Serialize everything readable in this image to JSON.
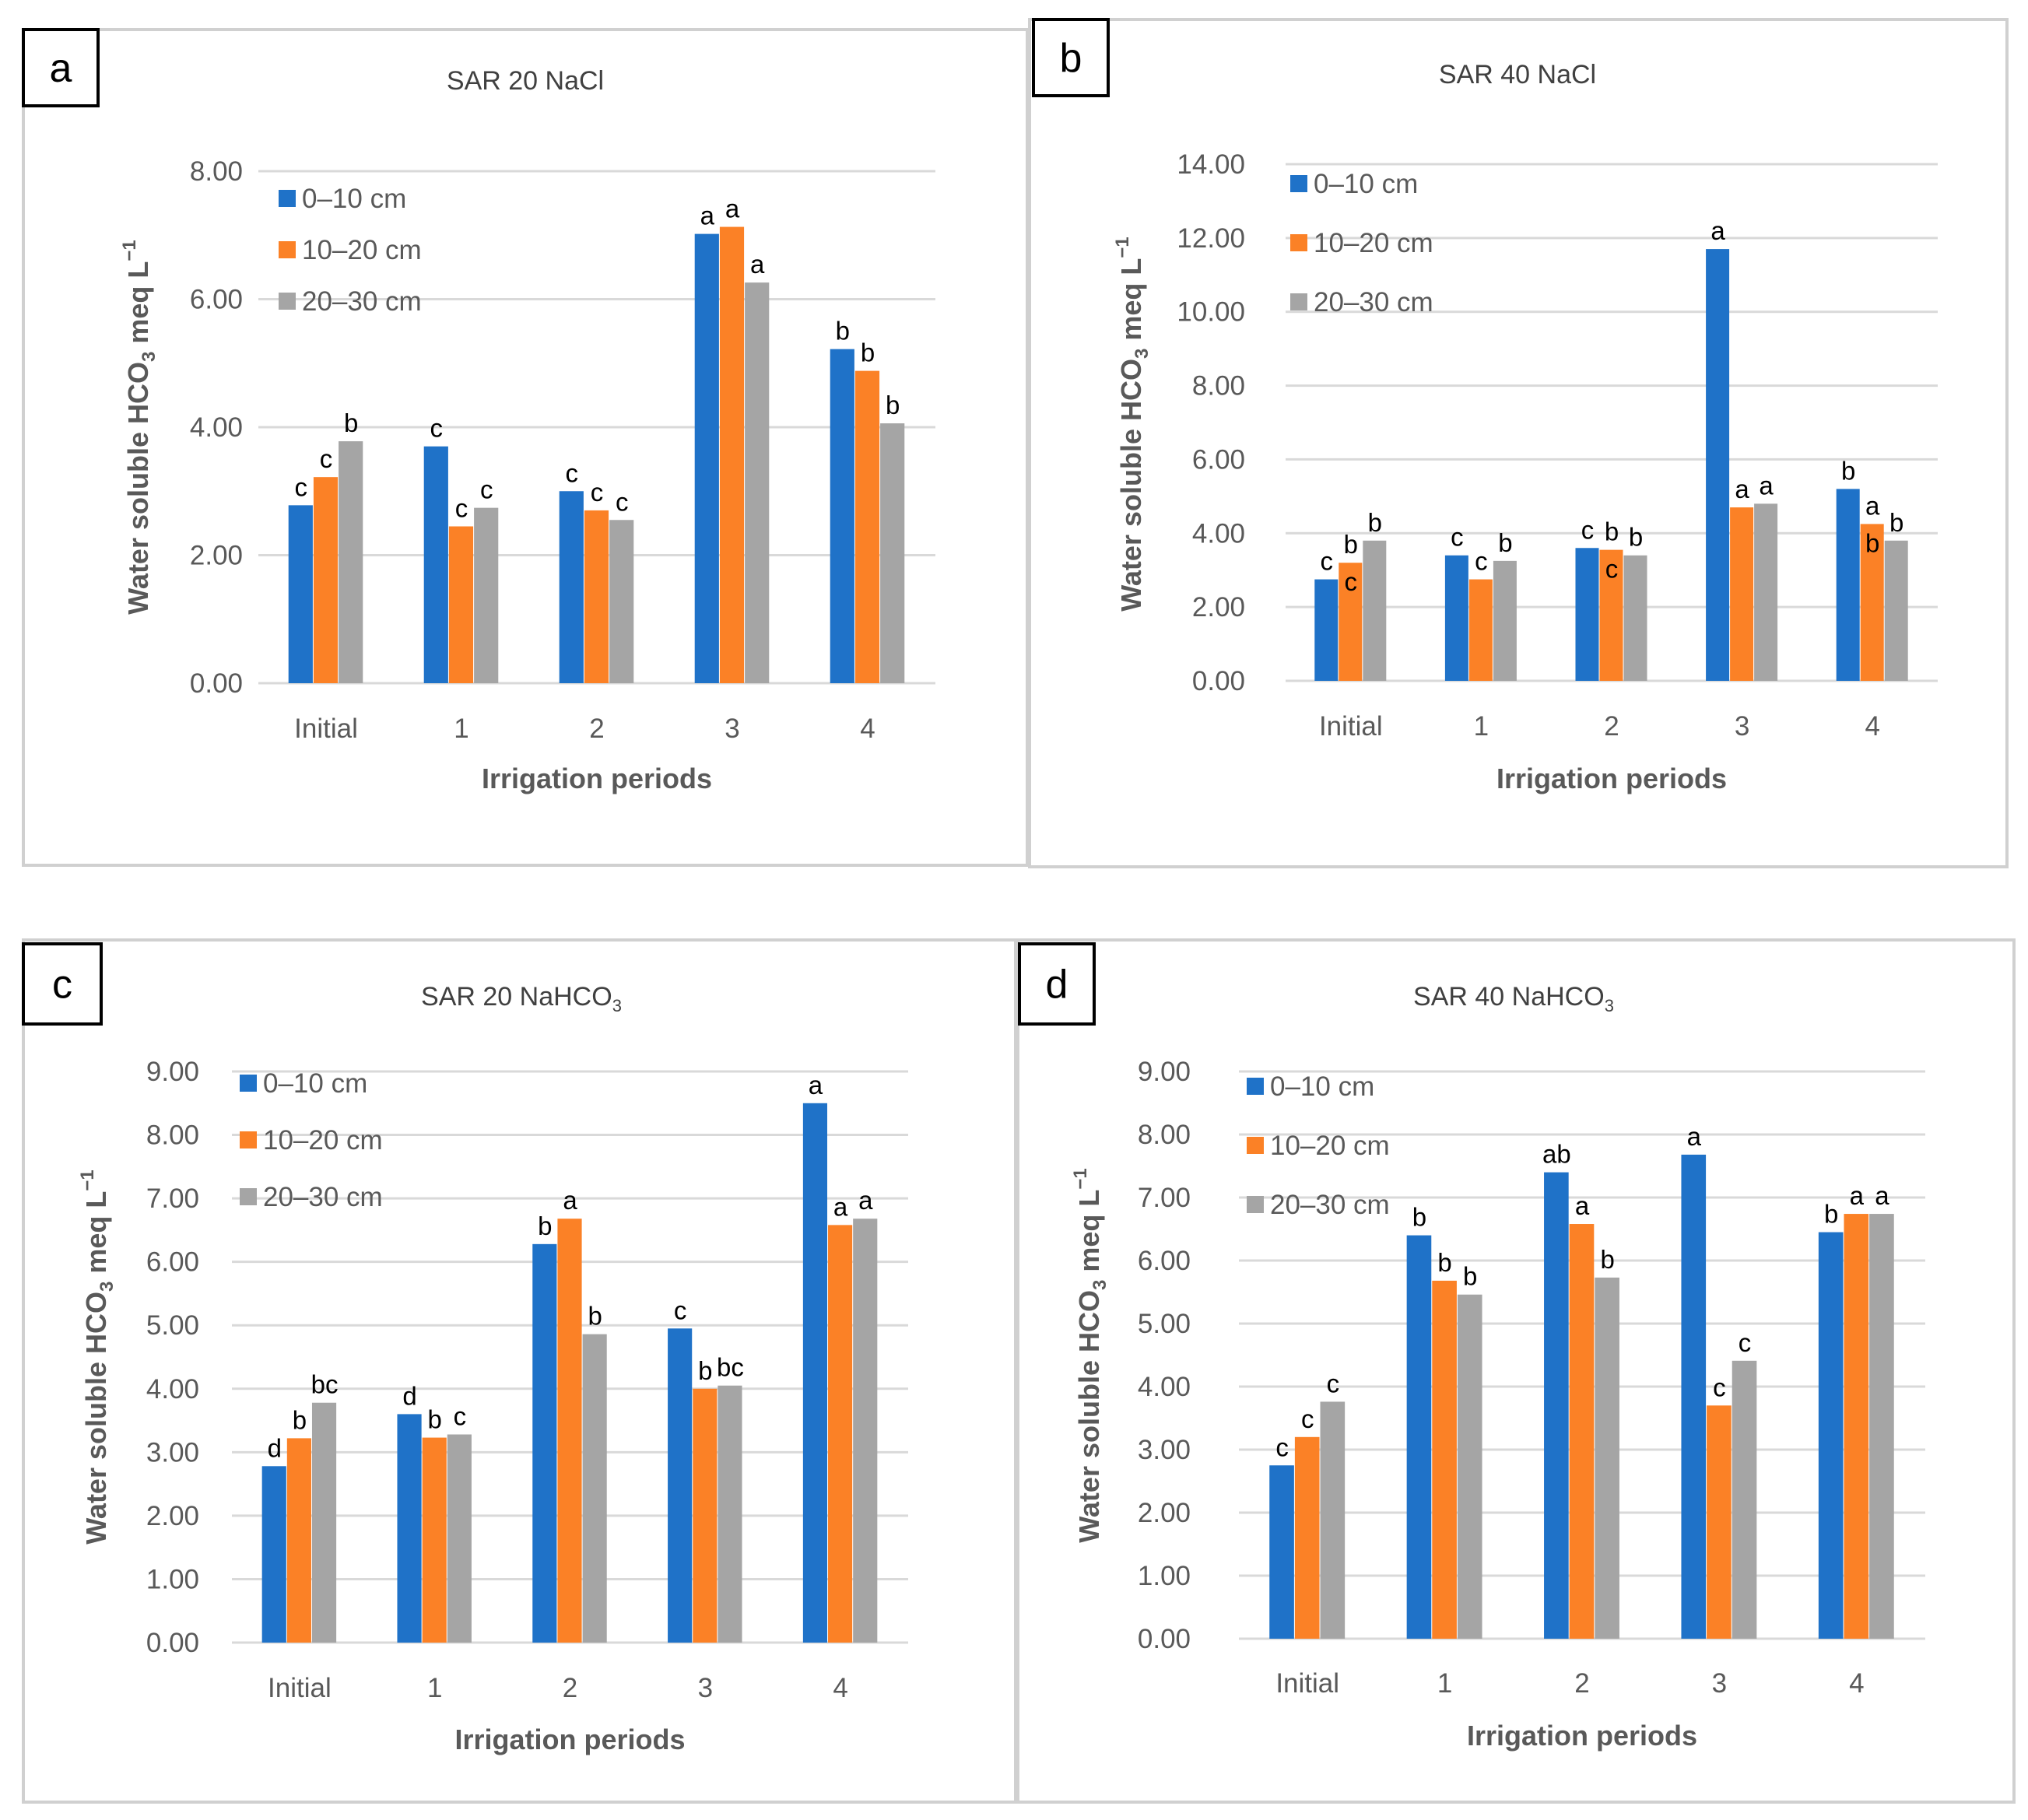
{
  "colors": {
    "series": [
      "#1f72c8",
      "#fb8126",
      "#a5a5a5"
    ]
  },
  "chart_data": [
    {
      "type": "bar",
      "panel": "a",
      "title": "SAR 20 NaCl",
      "title_sub": "",
      "xlabel": "Irrigation periods",
      "ylabel_main": "Water soluble HCO",
      "ylabel_sub": "3",
      "ylabel_unit": " meq L",
      "ylabel_sup": "−1",
      "ylim": [
        0,
        8
      ],
      "yticks": [
        "0.00",
        "2.00",
        "4.00",
        "6.00",
        "8.00"
      ],
      "categories": [
        "Initial",
        "1",
        "2",
        "3",
        "4"
      ],
      "series": [
        {
          "name": "0–10 cm",
          "values": [
            2.78,
            3.7,
            3.0,
            7.02,
            5.22
          ],
          "labels": [
            "c",
            "c",
            "c",
            "a",
            "b"
          ]
        },
        {
          "name": "10–20 cm",
          "values": [
            3.22,
            2.45,
            2.7,
            7.13,
            4.88
          ],
          "labels": [
            "c",
            "c",
            "c",
            "a",
            "b"
          ]
        },
        {
          "name": "20–30 cm",
          "values": [
            3.78,
            2.74,
            2.55,
            6.26,
            4.06
          ],
          "labels": [
            "b",
            "c",
            "c",
            "a",
            "b"
          ]
        }
      ],
      "legend": "top-left",
      "grid": true
    },
    {
      "type": "bar",
      "panel": "b",
      "title": "SAR 40 NaCl",
      "title_sub": "",
      "xlabel": "Irrigation periods",
      "ylabel_main": "Water soluble HCO",
      "ylabel_sub": "3",
      "ylabel_unit": " meq L",
      "ylabel_sup": "−1",
      "ylim": [
        0,
        14
      ],
      "yticks": [
        "0.00",
        "2.00",
        "4.00",
        "6.00",
        "8.00",
        "10.00",
        "12.00",
        "14.00"
      ],
      "categories": [
        "Initial",
        "1",
        "2",
        "3",
        "4"
      ],
      "series": [
        {
          "name": "0–10 cm",
          "values": [
            2.75,
            3.4,
            3.6,
            11.7,
            5.2
          ],
          "labels": [
            "c",
            "c",
            "c",
            "a",
            "b"
          ]
        },
        {
          "name": "10–20 cm",
          "values": [
            3.2,
            2.75,
            3.55,
            4.7,
            4.25
          ],
          "labels": [
            "b",
            "c",
            "b",
            "a",
            "a"
          ],
          "labels2": [
            "c",
            "",
            "c",
            "",
            "b"
          ]
        },
        {
          "name": "20–30 cm",
          "values": [
            3.8,
            3.25,
            3.4,
            4.8,
            3.8
          ],
          "labels": [
            "b",
            "b",
            "b",
            "a",
            "b"
          ]
        }
      ],
      "legend": "top-left",
      "grid": true
    },
    {
      "type": "bar",
      "panel": "c",
      "title": "SAR 20 NaHCO",
      "title_sub": "3",
      "xlabel": "Irrigation periods",
      "ylabel_main": "Water soluble HCO",
      "ylabel_sub": "3",
      "ylabel_unit": " meq L",
      "ylabel_sup": "−1",
      "ylim": [
        0,
        9
      ],
      "yticks": [
        "0.00",
        "1.00",
        "2.00",
        "3.00",
        "4.00",
        "5.00",
        "6.00",
        "7.00",
        "8.00",
        "9.00"
      ],
      "categories": [
        "Initial",
        "1",
        "2",
        "3",
        "4"
      ],
      "series": [
        {
          "name": "0–10 cm",
          "values": [
            2.78,
            3.6,
            6.28,
            4.95,
            8.5
          ],
          "labels": [
            "d",
            "d",
            "b",
            "c",
            "a"
          ]
        },
        {
          "name": "10–20 cm",
          "values": [
            3.22,
            3.23,
            6.68,
            4.0,
            6.58
          ],
          "labels": [
            "b",
            "b",
            "a",
            "b",
            "a"
          ]
        },
        {
          "name": "20–30 cm",
          "values": [
            3.78,
            3.28,
            4.86,
            4.05,
            6.68
          ],
          "labels": [
            "bc",
            "c",
            "b",
            "bc",
            "a"
          ]
        }
      ],
      "legend": "top-left",
      "grid": true
    },
    {
      "type": "bar",
      "panel": "d",
      "title": "SAR 40 NaHCO",
      "title_sub": "3",
      "xlabel": "Irrigation periods",
      "ylabel_main": "Water soluble HCO",
      "ylabel_sub": "3",
      "ylabel_unit": " meq L",
      "ylabel_sup": "−1",
      "ylim": [
        0,
        9
      ],
      "yticks": [
        "0.00",
        "1.00",
        "2.00",
        "3.00",
        "4.00",
        "5.00",
        "6.00",
        "7.00",
        "8.00",
        "9.00"
      ],
      "categories": [
        "Initial",
        "1",
        "2",
        "3",
        "4"
      ],
      "series": [
        {
          "name": "0–10 cm",
          "values": [
            2.75,
            6.4,
            7.4,
            7.68,
            6.45
          ],
          "labels": [
            "c",
            "b",
            "ab",
            "a",
            "b"
          ]
        },
        {
          "name": "10–20 cm",
          "values": [
            3.2,
            5.68,
            6.58,
            3.7,
            6.74
          ],
          "labels": [
            "c",
            "b",
            "a",
            "c",
            "a"
          ]
        },
        {
          "name": "20–30 cm",
          "values": [
            3.76,
            5.46,
            5.73,
            4.41,
            6.74
          ],
          "labels": [
            "c",
            "b",
            "b",
            "c",
            "a"
          ]
        }
      ],
      "legend": "top-left",
      "grid": true
    }
  ]
}
